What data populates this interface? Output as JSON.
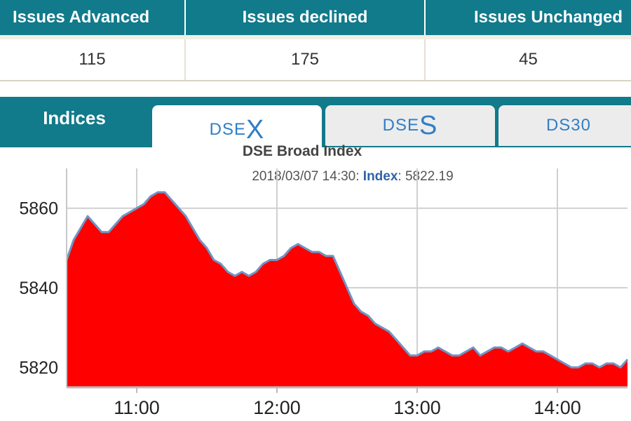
{
  "stats": {
    "headers": [
      "Issues Advanced",
      "Issues declined",
      "Issues Unchanged"
    ],
    "values": [
      "115",
      "175",
      "45"
    ]
  },
  "tabs": {
    "indices_label": "Indices",
    "dsex_prefix": "DSE",
    "dsex_suffix": "X",
    "dses_prefix": "DSE",
    "dses_suffix": "S",
    "ds30_label": "DS30",
    "active": "DSEX"
  },
  "chart_header": {
    "title": "DSE Broad Index",
    "timestamp": "2018/03/07 14:30:",
    "index_label": "Index",
    "index_sep": ":",
    "index_value": "5822.19"
  },
  "colors": {
    "header_teal": "#117a8b",
    "area_fill": "#ff0000",
    "line": "#6f95c4",
    "grid": "#d0d0d0",
    "tab_text": "#2f7fc6"
  },
  "chart_data": {
    "type": "area",
    "title": "DSE Broad Index",
    "xlabel": "",
    "ylabel": "",
    "x_range": [
      "10:30",
      "14:30"
    ],
    "x_ticks": [
      "11:00",
      "12:00",
      "13:00",
      "14:00"
    ],
    "ylim": [
      5815,
      5870
    ],
    "y_ticks": [
      5820,
      5840,
      5860
    ],
    "grid": true,
    "series": [
      {
        "x": [
          "10:30",
          "10:33",
          "10:36",
          "10:39",
          "10:42",
          "10:45",
          "10:48",
          "10:51",
          "10:54",
          "10:57",
          "11:00",
          "11:03",
          "11:06",
          "11:09",
          "11:12",
          "11:15",
          "11:18",
          "11:21",
          "11:24",
          "11:27",
          "11:30",
          "11:33",
          "11:36",
          "11:39",
          "11:42",
          "11:45",
          "11:48",
          "11:51",
          "11:54",
          "11:57",
          "12:00",
          "12:03",
          "12:06",
          "12:09",
          "12:12",
          "12:15",
          "12:18",
          "12:21",
          "12:24",
          "12:27",
          "12:30",
          "12:33",
          "12:36",
          "12:39",
          "12:42",
          "12:45",
          "12:48",
          "12:51",
          "12:54",
          "12:57",
          "13:00",
          "13:03",
          "13:06",
          "13:09",
          "13:12",
          "13:15",
          "13:18",
          "13:21",
          "13:24",
          "13:27",
          "13:30",
          "13:33",
          "13:36",
          "13:39",
          "13:42",
          "13:45",
          "13:48",
          "13:51",
          "13:54",
          "13:57",
          "14:00",
          "14:03",
          "14:06",
          "14:09",
          "14:12",
          "14:15",
          "14:18",
          "14:21",
          "14:24",
          "14:27",
          "14:30"
        ],
        "values": [
          5847,
          5852,
          5855,
          5858,
          5856,
          5854,
          5854,
          5856,
          5858,
          5859,
          5860,
          5861,
          5863,
          5864,
          5864,
          5862,
          5860,
          5858,
          5855,
          5852,
          5850,
          5847,
          5846,
          5844,
          5843,
          5844,
          5843,
          5844,
          5846,
          5847,
          5847,
          5848,
          5850,
          5851,
          5850,
          5849,
          5849,
          5848,
          5848,
          5844,
          5840,
          5836,
          5834,
          5833,
          5831,
          5830,
          5829,
          5827,
          5825,
          5823,
          5823,
          5824,
          5824,
          5825,
          5824,
          5823,
          5823,
          5824,
          5825,
          5823,
          5824,
          5825,
          5825,
          5824,
          5825,
          5826,
          5825,
          5824,
          5824,
          5823,
          5822,
          5821,
          5820,
          5820,
          5821,
          5821,
          5820,
          5821,
          5821,
          5820,
          5822
        ]
      }
    ]
  }
}
